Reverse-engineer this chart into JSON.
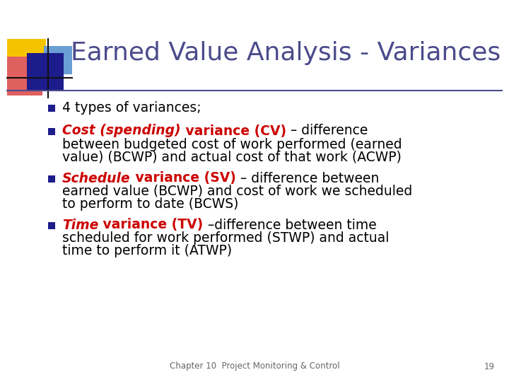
{
  "title": "Earned Value Analysis - Variances",
  "title_color": "#4B4B8C",
  "title_fontsize": 26,
  "background_color": "#FFFFFF",
  "footer_text": "Chapter 10  Project Monitoring & Control",
  "footer_page": "19",
  "bullet_color": "#1C1C8C",
  "accent_yellow": "#F5C400",
  "accent_pink": "#E06060",
  "accent_blue_dark": "#1C1C8C",
  "accent_blue_light": "#6B9FD4",
  "line_color": "#4B4B8C",
  "text_color": "#000000",
  "red_color": "#CC0000",
  "body_fontsize": 13.5
}
